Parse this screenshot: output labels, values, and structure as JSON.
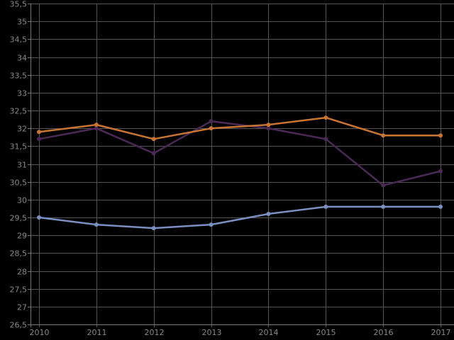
{
  "chart_data": {
    "type": "line",
    "title": "",
    "xlabel": "",
    "ylabel": "",
    "x": [
      "2010",
      "2011",
      "2012",
      "2013",
      "2014",
      "2015",
      "2016",
      "2017"
    ],
    "ylim": [
      26.5,
      35.5
    ],
    "y_ticks": [
      "26,5",
      "27",
      "27,5",
      "28",
      "28,5",
      "29",
      "29,5",
      "30",
      "30,5",
      "31",
      "31,5",
      "32",
      "32,5",
      "33",
      "33,5",
      "34",
      "34,5",
      "35",
      "35,5"
    ],
    "grid": true,
    "legend": "none",
    "background": "#000000",
    "series": [
      {
        "color": "#4a2a55",
        "values": [
          31.7,
          32.0,
          31.3,
          32.2,
          32.0,
          31.7,
          30.4,
          30.8
        ]
      },
      {
        "color": "#c87533",
        "values": [
          31.9,
          32.1,
          31.7,
          32.0,
          32.1,
          32.3,
          31.8,
          31.8
        ]
      },
      {
        "color": "#7b8fc0",
        "values": [
          29.5,
          29.3,
          29.2,
          29.3,
          29.6,
          29.8,
          29.8,
          29.8
        ]
      }
    ]
  }
}
